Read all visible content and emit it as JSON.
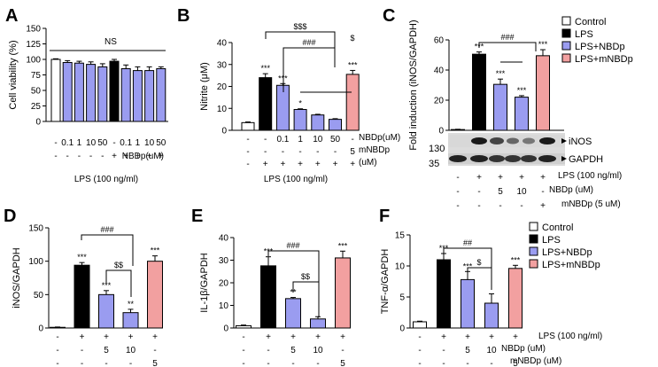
{
  "colors": {
    "control": "#ffffff",
    "lps": "#000000",
    "nbdp": "#9a9cf0",
    "mnbdp": "#f2a0a0",
    "axis": "#000000"
  },
  "legend": [
    "Control",
    "LPS",
    "LPS+NBDp",
    "LPS+mNBDp"
  ],
  "chart_data": [
    {
      "panel": "A",
      "type": "bar",
      "ylabel": "Cell viability (%)",
      "ylim": [
        0,
        150
      ],
      "yticks": [
        0,
        25,
        50,
        75,
        100,
        125,
        150
      ],
      "values": [
        100,
        95,
        94,
        92,
        88,
        97,
        85,
        82,
        82,
        85
      ],
      "errors": [
        1,
        3,
        3,
        4,
        5,
        3,
        6,
        6,
        6,
        3
      ],
      "colors": [
        "control",
        "nbdp",
        "nbdp",
        "nbdp",
        "nbdp",
        "lps",
        "nbdp",
        "nbdp",
        "nbdp",
        "nbdp"
      ],
      "annotation": "NS",
      "row_labels": [
        "NBDp(uM)"
      ],
      "rows": [
        [
          "-",
          "0.1",
          "1",
          "10",
          "50",
          "-",
          "0.1",
          "1",
          "10",
          "50"
        ],
        [
          "-",
          "-",
          "-",
          "-",
          "-",
          "+",
          "+",
          "+",
          "+",
          "+"
        ]
      ],
      "footer": "LPS (100 ng/ml)"
    },
    {
      "panel": "B",
      "type": "bar",
      "ylabel": "Nitrite (μM)",
      "ylim": [
        0,
        40
      ],
      "yticks": [
        0,
        10,
        20,
        30,
        40
      ],
      "values": [
        3.5,
        24,
        20.5,
        9.5,
        7,
        5,
        25.5
      ],
      "errors": [
        0.3,
        1.8,
        0.8,
        0.3,
        0.3,
        0.3,
        1.8
      ],
      "colors": [
        "control",
        "lps",
        "nbdp",
        "nbdp",
        "nbdp",
        "nbdp",
        "mnbdp"
      ],
      "sig": [
        "",
        "***",
        "***",
        "*",
        "",
        "",
        "***"
      ],
      "brackets": [
        "$$$",
        "###",
        "$"
      ],
      "row_labels": [
        "NBDp(uM)",
        "mNBDp",
        "(uM)"
      ],
      "rows": [
        [
          "-",
          "-",
          "0.1",
          "1",
          "10",
          "50",
          "-"
        ],
        [
          "-",
          "-",
          "-",
          "-",
          "-",
          "-",
          "5"
        ],
        [
          "-",
          "+",
          "+",
          "+",
          "+",
          "+",
          "+"
        ]
      ],
      "footer": "LPS (100 ng/ml)"
    },
    {
      "panel": "C",
      "type": "bar",
      "ylabel": "Fold induction (iNOS/GAPDH)",
      "ylim": [
        0,
        60
      ],
      "yticks": [
        0,
        20,
        40,
        60
      ],
      "values": [
        0.5,
        50.5,
        30.5,
        22,
        49.5
      ],
      "errors": [
        0.2,
        1.5,
        3.5,
        1,
        4
      ],
      "colors": [
        "control",
        "lps",
        "nbdp",
        "nbdp",
        "mnbdp"
      ],
      "sig": [
        "",
        "***",
        "***",
        "***",
        "***"
      ],
      "brackets": [
        "###"
      ],
      "blot_labels": [
        "iNOS",
        "GAPDH"
      ],
      "mw_labels": [
        "130",
        "35"
      ],
      "rows": [
        [
          "-",
          "+",
          "+",
          "+",
          "+"
        ],
        [
          "-",
          "-",
          "5",
          "10",
          "-"
        ],
        [
          "-",
          "-",
          "-",
          "-",
          "+"
        ]
      ],
      "row_labels": [
        "LPS (100 ng/ml)",
        "NBDp (uM)",
        "mNBDp (5 uM)"
      ]
    },
    {
      "panel": "D",
      "type": "bar",
      "ylabel": "iNOS/GAPDH",
      "ylim": [
        0,
        150
      ],
      "yticks": [
        0,
        50,
        100,
        150
      ],
      "values": [
        1,
        94,
        50,
        23,
        100
      ],
      "errors": [
        0.5,
        4,
        6,
        5,
        8
      ],
      "colors": [
        "control",
        "lps",
        "nbdp",
        "nbdp",
        "mnbdp"
      ],
      "sig": [
        "",
        "***",
        "***",
        "**",
        "***"
      ],
      "brackets": [
        "###",
        "$$"
      ],
      "rows": [
        [
          "-",
          "+",
          "+",
          "+",
          "+"
        ],
        [
          "-",
          "-",
          "5",
          "10",
          "-"
        ],
        [
          "-",
          "-",
          "-",
          "-",
          "5"
        ]
      ]
    },
    {
      "panel": "E",
      "type": "bar",
      "ylabel": "IL-1β/GAPDH",
      "ylim": [
        0,
        40
      ],
      "yticks": [
        0,
        10,
        20,
        30,
        40
      ],
      "values": [
        1,
        27.5,
        13,
        4,
        31
      ],
      "errors": [
        0.3,
        4,
        0.5,
        1,
        3
      ],
      "colors": [
        "control",
        "lps",
        "nbdp",
        "nbdp",
        "mnbdp"
      ],
      "sig": [
        "",
        "***",
        "**",
        "",
        "***"
      ],
      "brackets": [
        "###",
        "$$"
      ],
      "rows": [
        [
          "-",
          "+",
          "+",
          "+",
          "+"
        ],
        [
          "-",
          "-",
          "5",
          "10",
          "-"
        ],
        [
          "-",
          "-",
          "-",
          "-",
          "5"
        ]
      ]
    },
    {
      "panel": "F",
      "type": "bar",
      "ylabel": "TNF-α/GAPDH",
      "ylim": [
        0,
        15
      ],
      "yticks": [
        0,
        5,
        10,
        15
      ],
      "values": [
        1,
        11,
        7.8,
        4,
        9.6
      ],
      "errors": [
        0.1,
        1,
        1.3,
        1.5,
        0.5
      ],
      "colors": [
        "control",
        "lps",
        "nbdp",
        "nbdp",
        "mnbdp"
      ],
      "sig": [
        "",
        "***",
        "***",
        "",
        "***"
      ],
      "brackets": [
        "##",
        "$"
      ],
      "rows": [
        [
          "-",
          "+",
          "+",
          "+",
          "+"
        ],
        [
          "-",
          "-",
          "5",
          "10",
          "-"
        ],
        [
          "-",
          "-",
          "-",
          "-",
          "5"
        ]
      ],
      "row_labels": [
        "LPS (100 ng/ml)",
        "NBDp (uM)",
        "mNBDp (uM)"
      ]
    }
  ]
}
